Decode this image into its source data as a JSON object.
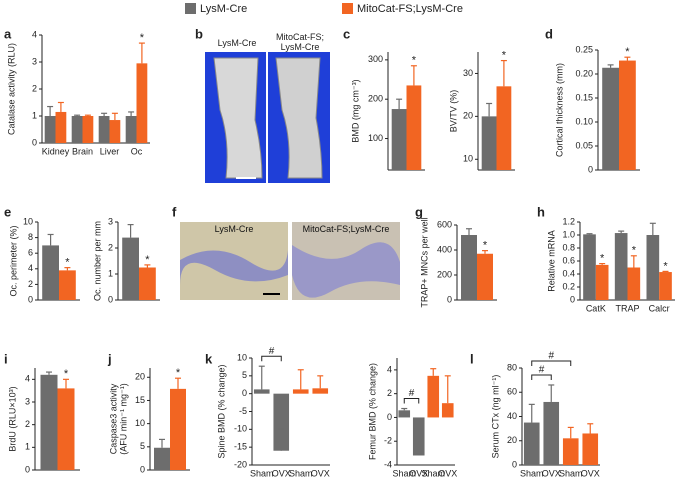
{
  "legend": [
    {
      "name": "LysM-Cre",
      "color": "#6d6d6d"
    },
    {
      "name": "MitoCat-FS;LysM-Cre",
      "color": "#f26522"
    }
  ],
  "images": [
    {
      "panel": "b",
      "labels": [
        "LysM-Cre",
        "MitoCat-FS;\nLysM-Cre"
      ]
    },
    {
      "panel": "f",
      "labels": [
        "LysM-Cre",
        "MitoCat-FS;LysM-Cre"
      ]
    }
  ],
  "chart_data": [
    {
      "panel": "a",
      "type": "bar",
      "ylabel": "Catalase activity (RLU)",
      "categories": [
        "Kidney",
        "Brain",
        "Liver",
        "Oc"
      ],
      "ylim": [
        0,
        4
      ],
      "yticks": [
        0,
        1,
        2,
        3,
        4
      ],
      "series": [
        {
          "color": "#6d6d6d",
          "values": [
            1,
            1,
            1,
            1
          ],
          "errors": [
            0.35,
            0.03,
            0.1,
            0.15
          ]
        },
        {
          "color": "#f26522",
          "values": [
            1.15,
            1,
            0.85,
            2.95
          ],
          "errors": [
            0.35,
            0.03,
            0.25,
            0.75
          ],
          "markers": [
            null,
            null,
            null,
            "*"
          ]
        }
      ]
    },
    {
      "panel": "c",
      "type": "bar",
      "ylabel": "BMD (mg cm⁻³)",
      "categories": [
        null
      ],
      "ylim": [
        20,
        320
      ],
      "yticks": [
        100,
        200,
        300
      ],
      "series": [
        {
          "color": "#6d6d6d",
          "values": [
            175
          ],
          "errors": [
            25
          ]
        },
        {
          "color": "#f26522",
          "values": [
            235
          ],
          "errors": [
            50
          ],
          "markers": [
            "*"
          ]
        }
      ]
    },
    {
      "type": "bar",
      "ylabel": "BV/TV (%)",
      "categories": [
        null
      ],
      "ylim": [
        7.5,
        35
      ],
      "yticks": [
        10,
        20,
        30
      ],
      "series": [
        {
          "color": "#6d6d6d",
          "values": [
            20
          ],
          "errors": [
            3
          ]
        },
        {
          "color": "#f26522",
          "values": [
            27
          ],
          "errors": [
            6
          ],
          "markers": [
            "*"
          ]
        }
      ]
    },
    {
      "panel": "d",
      "type": "bar",
      "ylabel": "Cortical thickness (mm)",
      "categories": [
        null
      ],
      "ylim": [
        0,
        0.25
      ],
      "yticks": [
        0,
        0.05,
        {
          "value": 0.1,
          "label": "0.10"
        },
        0.15,
        {
          "value": 0.2,
          "label": "0.20"
        },
        0.25
      ],
      "series": [
        {
          "color": "#6d6d6d",
          "values": [
            0.213
          ],
          "errors": [
            0.006
          ]
        },
        {
          "color": "#f26522",
          "values": [
            0.228
          ],
          "errors": [
            0.007
          ],
          "markers": [
            "*"
          ]
        }
      ]
    },
    {
      "panel": "e",
      "type": "bar",
      "ylabel": "Oc. perimeter (%)",
      "categories": [
        null
      ],
      "ylim": [
        0,
        10
      ],
      "yticks": [
        0,
        2,
        4,
        6,
        8,
        10
      ],
      "series": [
        {
          "color": "#6d6d6d",
          "values": [
            7
          ],
          "errors": [
            1.4
          ]
        },
        {
          "color": "#f26522",
          "values": [
            3.8
          ],
          "errors": [
            0.35
          ],
          "markers": [
            "*"
          ]
        }
      ]
    },
    {
      "type": "bar",
      "ylabel": "Oc. number per mm",
      "categories": [
        null
      ],
      "ylim": [
        0,
        3
      ],
      "yticks": [
        0,
        1,
        2,
        3
      ],
      "series": [
        {
          "color": "#6d6d6d",
          "values": [
            2.4
          ],
          "errors": [
            0.5
          ]
        },
        {
          "color": "#f26522",
          "values": [
            1.25
          ],
          "errors": [
            0.1
          ],
          "markers": [
            "*"
          ]
        }
      ]
    },
    {
      "panel": "g",
      "type": "bar",
      "ylabel": "TRAP+ MNCs per well",
      "categories": [
        null
      ],
      "ylim": [
        0,
        600
      ],
      "yticks": [
        0,
        200,
        400,
        600
      ],
      "series": [
        {
          "color": "#6d6d6d",
          "values": [
            520
          ],
          "errors": [
            50
          ]
        },
        {
          "color": "#f26522",
          "values": [
            370
          ],
          "errors": [
            25
          ],
          "markers": [
            "*"
          ]
        }
      ]
    },
    {
      "panel": "h",
      "type": "bar",
      "ylabel": "Relative mRNA",
      "categories": [
        "CatK",
        "TRAP",
        "Calcr"
      ],
      "ylim": [
        0,
        1.2
      ],
      "yticks": [
        0,
        0.2,
        0.4,
        0.6,
        0.8,
        {
          "value": 1,
          "label": "1.0"
        },
        1.2
      ],
      "series": [
        {
          "color": "#6d6d6d",
          "values": [
            1.01,
            1.03,
            1
          ],
          "errors": [
            0.01,
            0.03,
            0.18
          ]
        },
        {
          "color": "#f26522",
          "values": [
            0.54,
            0.5,
            0.43
          ],
          "errors": [
            0.02,
            0.18,
            0.01
          ],
          "markers": [
            "*",
            "*",
            "*"
          ]
        }
      ]
    },
    {
      "panel": "i",
      "type": "bar",
      "ylabel": "BrdU (RLU×10³)",
      "categories": [
        null
      ],
      "ylim": [
        0,
        4.5
      ],
      "yticks": [
        0,
        1,
        2,
        3,
        4
      ],
      "series": [
        {
          "color": "#6d6d6d",
          "values": [
            4.2
          ],
          "errors": [
            0.12
          ]
        },
        {
          "color": "#f26522",
          "values": [
            3.6
          ],
          "errors": [
            0.4
          ],
          "markers": [
            "*"
          ]
        }
      ]
    },
    {
      "panel": "j",
      "type": "bar",
      "ylabel": [
        "Caspase3 activity",
        "(AFU min⁻¹ mg⁻¹)"
      ],
      "categories": [
        null
      ],
      "ylim": [
        0,
        22
      ],
      "yticks": [
        0,
        5,
        10,
        15,
        20
      ],
      "series": [
        {
          "color": "#6d6d6d",
          "values": [
            4.8
          ],
          "errors": [
            1.8
          ]
        },
        {
          "color": "#f26522",
          "values": [
            17.5
          ],
          "errors": [
            2.3
          ],
          "markers": [
            "*"
          ]
        }
      ]
    },
    {
      "panel": "k",
      "type": "bar",
      "ylabel": "Spine BMD (% change)",
      "categories": [
        "Sham",
        "OVX",
        "Sham",
        "OVX"
      ],
      "ylim": [
        -20,
        10
      ],
      "yticks": [
        -20,
        -15,
        -10,
        -5,
        0,
        5,
        10
      ],
      "series": [
        {
          "color": "#6d6d6d",
          "values": [
            1.2,
            -16,
            null,
            null
          ],
          "errors": [
            6.5,
            6,
            null,
            null
          ]
        },
        {
          "color": "#f26522",
          "values": [
            null,
            null,
            1.2,
            1.5
          ],
          "errors": [
            null,
            null,
            5.5,
            3.5
          ]
        }
      ],
      "brackets": [
        {
          "categories": [
            0,
            1
          ],
          "label": "#"
        }
      ]
    },
    {
      "type": "bar",
      "ylabel": "Femur BMD (% change)",
      "categories": [
        "Sham",
        "OVX",
        "Sham",
        "OVX"
      ],
      "ylim": [
        -4,
        5
      ],
      "yticks": [
        -4,
        -2,
        0,
        2,
        4
      ],
      "series": [
        {
          "color": "#6d6d6d",
          "values": [
            0.6,
            -3.2,
            null,
            null
          ],
          "errors": [
            0.15,
            0.1,
            null,
            null
          ]
        },
        {
          "color": "#f26522",
          "values": [
            null,
            null,
            3.5,
            1.2
          ],
          "errors": [
            null,
            null,
            0.6,
            2.3
          ]
        }
      ],
      "brackets": [
        {
          "categories": [
            0,
            1
          ],
          "label": "#"
        }
      ]
    },
    {
      "panel": "l",
      "type": "bar",
      "ylabel": "Serum CTx (ng ml⁻¹)",
      "categories": [
        "Sham",
        "OVX",
        "Sham",
        "OVX"
      ],
      "ylim": [
        0,
        80
      ],
      "yticks": [
        0,
        20,
        40,
        60,
        80
      ],
      "series": [
        {
          "color": "#6d6d6d",
          "values": [
            35,
            52,
            null,
            null
          ],
          "errors": [
            15,
            14,
            null,
            null
          ]
        },
        {
          "color": "#f26522",
          "values": [
            null,
            null,
            22,
            26
          ],
          "errors": [
            null,
            null,
            9,
            8
          ]
        }
      ],
      "brackets": [
        {
          "categories": [
            0,
            1
          ],
          "label": "#"
        },
        {
          "categories": [
            0,
            2
          ],
          "label": "#"
        }
      ]
    }
  ]
}
